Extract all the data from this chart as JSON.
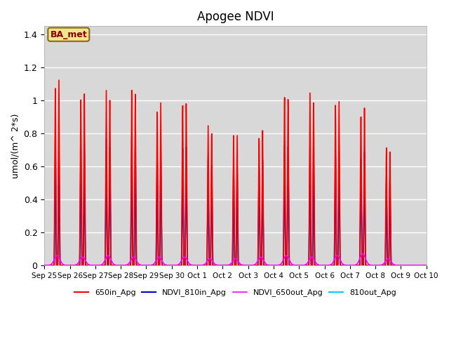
{
  "title": "Apogee NDVI",
  "ylabel": "umol/(m^ 2*s)",
  "ylim": [
    0,
    1.45
  ],
  "yticks": [
    0.0,
    0.2,
    0.4,
    0.6,
    0.8,
    1.0,
    1.2,
    1.4
  ],
  "background_color": "#d8d8d8",
  "annotation_text": "BA_met",
  "annotation_box_color": "#f0e68c",
  "annotation_box_edge": "#8B6914",
  "legend_labels": [
    "650in_Apg",
    "NDVI_810in_Apg",
    "NDVI_650out_Apg",
    "810out_Apg"
  ],
  "line_colors": [
    "#ff0000",
    "#0000cc",
    "#ff00ff",
    "#00ccff"
  ],
  "num_days": 15,
  "day_labels": [
    "Sep 25",
    "Sep 26",
    "Sep 27",
    "Sep 28",
    "Sep 29",
    "Sep 30",
    "Oct 1",
    "Oct 2",
    "Oct 3",
    "Oct 4",
    "Oct 5",
    "Oct 6",
    "Oct 7",
    "Oct 8",
    "Oct 9",
    "Oct 10"
  ],
  "peaks_650in": [
    1.13,
    1.08,
    1.09,
    1.08,
    0.99,
    1.03,
    0.86,
    0.81,
    0.83,
    1.07,
    1.05,
    1.01,
    0.98,
    0.74
  ],
  "peaks_810in": [
    0.81,
    0.77,
    0.79,
    0.79,
    0.72,
    0.76,
    0.67,
    0.65,
    0.65,
    0.77,
    0.75,
    0.74,
    0.71,
    0.56
  ],
  "peaks_650out": [
    0.06,
    0.05,
    0.06,
    0.05,
    0.05,
    0.05,
    0.04,
    0.04,
    0.05,
    0.06,
    0.05,
    0.06,
    0.07,
    0.04
  ],
  "peaks_810out": [
    0.45,
    0.42,
    0.44,
    0.46,
    0.45,
    0.45,
    0.43,
    0.41,
    0.42,
    0.47,
    0.46,
    0.47,
    0.46,
    0.37
  ],
  "figsize": [
    6.4,
    4.8
  ],
  "dpi": 100
}
